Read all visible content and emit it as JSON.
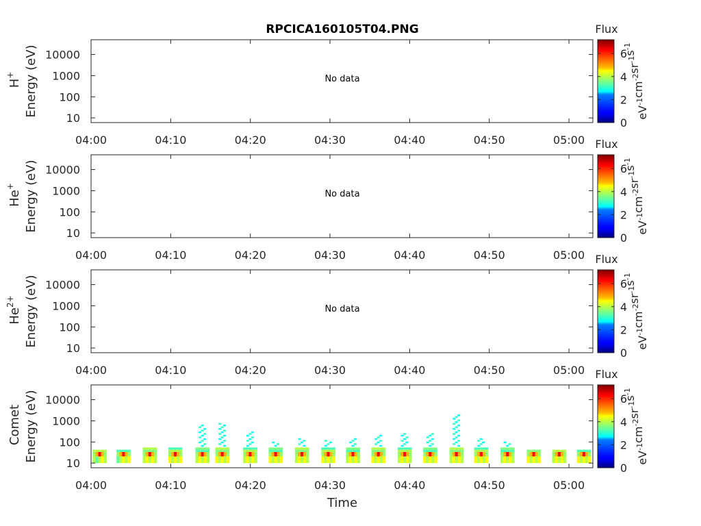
{
  "title": "RPCICA160105T04.PNG",
  "chart_data": [
    {
      "type": "heatmap",
      "ylabel_species": "H",
      "ylabel_species_sup": "+",
      "ylabel_units": "Energy (eV)",
      "message": "No data",
      "x_ticks": [
        "04:00",
        "04:10",
        "04:20",
        "04:30",
        "04:40",
        "04:50",
        "05:00"
      ],
      "xlim_minutes": [
        0,
        63
      ],
      "y_ticks": [
        10,
        100,
        1000,
        10000
      ],
      "y_tick_labels": [
        "10",
        "100",
        "1000",
        "10000"
      ],
      "y_scale": "log",
      "ylim": [
        6,
        50000
      ],
      "colorbar": {
        "title": "Flux",
        "ticks": [
          0,
          2,
          4,
          6
        ],
        "range": [
          0,
          7.2
        ],
        "units": "eV-1cm-2sr-1s-1"
      },
      "cells": []
    },
    {
      "type": "heatmap",
      "ylabel_species": "He",
      "ylabel_species_sup": "+",
      "ylabel_units": "Energy (eV)",
      "message": "No data",
      "x_ticks": [
        "04:00",
        "04:10",
        "04:20",
        "04:30",
        "04:40",
        "04:50",
        "05:00"
      ],
      "xlim_minutes": [
        0,
        63
      ],
      "y_ticks": [
        10,
        100,
        1000,
        10000
      ],
      "y_tick_labels": [
        "10",
        "100",
        "1000",
        "10000"
      ],
      "y_scale": "log",
      "ylim": [
        6,
        50000
      ],
      "colorbar": {
        "title": "Flux",
        "ticks": [
          0,
          2,
          4,
          6
        ],
        "range": [
          0,
          7.2
        ],
        "units": "eV-1cm-2sr-1s-1"
      },
      "cells": []
    },
    {
      "type": "heatmap",
      "ylabel_species": "He",
      "ylabel_species_sup": "2+",
      "ylabel_units": "Energy (eV)",
      "message": "No data",
      "x_ticks": [
        "04:00",
        "04:10",
        "04:20",
        "04:30",
        "04:40",
        "04:50",
        "05:00"
      ],
      "xlim_minutes": [
        0,
        63
      ],
      "y_ticks": [
        10,
        100,
        1000,
        10000
      ],
      "y_tick_labels": [
        "10",
        "100",
        "1000",
        "10000"
      ],
      "y_scale": "log",
      "ylim": [
        6,
        50000
      ],
      "colorbar": {
        "title": "Flux",
        "ticks": [
          0,
          2,
          4,
          6
        ],
        "range": [
          0,
          7.2
        ],
        "units": "eV-1cm-2sr-1s-1"
      },
      "cells": []
    },
    {
      "type": "heatmap",
      "ylabel_species": "Comet",
      "ylabel_species_sup": "",
      "ylabel_units": "Energy (eV)",
      "message": "",
      "xlabel": "Time",
      "x_ticks": [
        "04:00",
        "04:10",
        "04:20",
        "04:30",
        "04:40",
        "04:50",
        "05:00"
      ],
      "xlim_minutes": [
        0,
        63
      ],
      "y_ticks": [
        10,
        100,
        1000,
        10000
      ],
      "y_tick_labels": [
        "10",
        "100",
        "1000",
        "10000"
      ],
      "y_scale": "log",
      "ylim": [
        6,
        50000
      ],
      "colorbar": {
        "title": "Flux",
        "ticks": [
          0,
          2,
          4,
          6
        ],
        "range": [
          0,
          7.2
        ],
        "units": "eV-1cm-2sr-1s-1"
      },
      "bursts": [
        {
          "t": 0.9,
          "top": 40,
          "spike": 0
        },
        {
          "t": 3.9,
          "top": 40,
          "spike": 0
        },
        {
          "t": 7.2,
          "top": 60,
          "spike": 0
        },
        {
          "t": 10.4,
          "top": 50,
          "spike": 0
        },
        {
          "t": 13.8,
          "top": 60,
          "spike": 600
        },
        {
          "t": 16.3,
          "top": 50,
          "spike": 700
        },
        {
          "t": 19.8,
          "top": 60,
          "spike": 300
        },
        {
          "t": 23.0,
          "top": 60,
          "spike": 100
        },
        {
          "t": 26.3,
          "top": 60,
          "spike": 150
        },
        {
          "t": 29.6,
          "top": 50,
          "spike": 120
        },
        {
          "t": 32.7,
          "top": 50,
          "spike": 150
        },
        {
          "t": 35.9,
          "top": 60,
          "spike": 200
        },
        {
          "t": 39.2,
          "top": 60,
          "spike": 250
        },
        {
          "t": 42.4,
          "top": 60,
          "spike": 250
        },
        {
          "t": 45.7,
          "top": 60,
          "spike": 1800
        },
        {
          "t": 48.8,
          "top": 50,
          "spike": 150
        },
        {
          "t": 52.1,
          "top": 50,
          "spike": 100
        },
        {
          "t": 55.4,
          "top": 40,
          "spike": 0
        },
        {
          "t": 58.6,
          "top": 40,
          "spike": 0
        },
        {
          "t": 61.7,
          "top": 40,
          "spike": 0
        }
      ]
    }
  ]
}
